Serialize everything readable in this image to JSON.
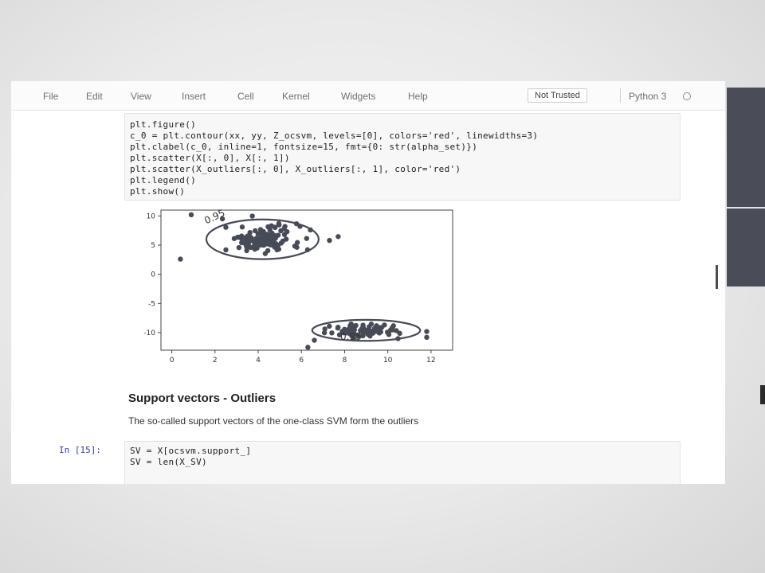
{
  "menubar": {
    "items": [
      "File",
      "Edit",
      "View",
      "Insert",
      "Cell",
      "Kernel",
      "Widgets",
      "Help"
    ],
    "trust_label": "Not Trusted",
    "kernel_name": "Python 3"
  },
  "code_cell": {
    "lines": [
      "plt.figure()",
      "c_0 = plt.contour(xx, yy, Z_ocsvm, levels=[0], colors='red', linewidths=3)",
      "plt.clabel(c_0, inline=1, fontsize=15, fmt={0: str(alpha_set)})",
      "plt.scatter(X[:, 0], X[:, 1])",
      "plt.scatter(X_outliers[:, 0], X_outliers[:, 1], color='red')",
      "plt.legend()",
      "plt.show()"
    ]
  },
  "chart_data": {
    "type": "scatter",
    "xlim": [
      -0.5,
      13
    ],
    "ylim": [
      -13,
      11
    ],
    "xticks": [
      "0",
      "2",
      "4",
      "6",
      "8",
      "10",
      "12"
    ],
    "yticks": [
      "10",
      "5",
      "0",
      "-5",
      "-10"
    ],
    "contour_label": "0.95",
    "contours": [
      {
        "cx": 4.2,
        "cy": 6.0,
        "rx": 2.6,
        "ry": 3.4
      },
      {
        "cx": 9.0,
        "cy": -9.6,
        "rx": 2.5,
        "ry": 1.8
      }
    ],
    "clusters": [
      {
        "center": [
          4.2,
          6.0
        ],
        "n": 120
      },
      {
        "center": [
          9.0,
          -9.6
        ],
        "n": 80
      }
    ],
    "outliers": [
      [
        0.9,
        10.2
      ],
      [
        0.4,
        2.6
      ],
      [
        7.3,
        5.8
      ],
      [
        6.6,
        -11.3
      ],
      [
        11.8,
        -9.8
      ],
      [
        11.8,
        -10.8
      ],
      [
        6.3,
        -12.5
      ]
    ],
    "point_color": "#474b57",
    "contour_color": "#474b57"
  },
  "section": {
    "heading": "Support vectors - Outliers",
    "paragraph": "The so-called support vectors of the one-class SVM form the outliers"
  },
  "code_cell2": {
    "prompt": "In [15]:",
    "lines": [
      "SV = X[ocsvm.support_]",
      "SV = len(X_SV)"
    ]
  }
}
